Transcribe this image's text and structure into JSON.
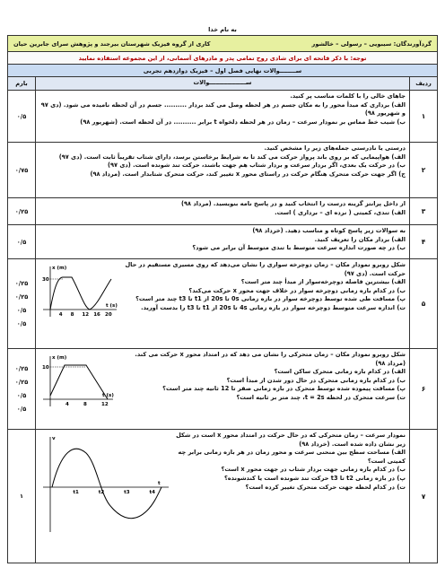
{
  "header": {
    "basmala": "به نام خدا",
    "authors": "گردآورندگان: سیبویی – رسولی – خالشور",
    "group": "کاری از گروه فیزیک شهرستان بیرجند و پژوهش سرای جابرین حیان",
    "note": "توجه: با ذکر فاتحه ای برای شادی روح تمامی پدر و مادرهای آسمانی، از این مجموعه استفاده نمایید",
    "exam_title": "ســــــــوالات نهایی فصل اول – فیزیک دوازدهم تجربی"
  },
  "table": {
    "columns": [
      "ردیف",
      "ســــــــــــــــــوالات",
      "بارم"
    ],
    "rows": [
      {
        "number": "۱",
        "lines": [
          "جاهای خالی را با کلمات مناسب پر کنید.",
          "الف) برداری که مبدأ محور را به مکان جسم در هر لحظه وصل می کند بردار .......... جسم در آن لحظه نامیده می شود. (دی ۹۷ و شهریور ۹۸)",
          "ب) شیب خط مماس بر نمودار سرعت – زمان در هر لحظه دلخواه t برابر .......... در آن لحظه است. (شهریور ۹۸)"
        ],
        "scores": [
          "۰/۵"
        ]
      },
      {
        "number": "۲",
        "lines": [
          "درستی یا نادرستی جمله‌های زیر را مشخص کنید.",
          "الف) هواپیمایی که بر روی باند پرواز حرکت می کند تا به شرایط برخاستن برسد، دارای شتاب تقریباً ثابت است. (دی ۹۷)",
          "ب) در حرکت یک بعدی، اگر بردار سرعت و بردار شتاب هم جهت باشند، حرکت تند شونده است. (دی ۹۷)",
          "ج) اگر جهت حرکت متحرک هنگام حرکت در راستای محور x تغییر کند، حرکت متحرک شتابدار است. (مرداد ۹۸)"
        ],
        "scores": [
          "۰/۷۵"
        ]
      },
      {
        "number": "۳",
        "lines": [
          "از داخل پرانتز گزینه درست را انتخاب کنید و در پاسخ نامه بنویسید. (مرداد ۹۸)",
          "الف) تندی، کمیتی ( نرده ای – برداری ) است."
        ],
        "scores": [
          "۰/۲۵"
        ]
      },
      {
        "number": "۴",
        "lines": [
          "به سوالات زیر پاسخ کوتاه و مناسب دهید. (خرداد ۹۸)",
          "الف) بردار مکان را تعریف کنید.",
          "ب) در چه صورت اندازه سرعت متوسط با تندی متوسط آن برابر می شود؟"
        ],
        "scores": [
          "۰/۵"
        ]
      },
      {
        "number": "۵",
        "lines": [
          "شکل روبرو نمودار مکان – زمان دوچرخه سواری را نشان می‌دهد که روی مسیری مستقیم در حال حرکت است. (دی ۹۷)",
          "الف) بیشترین فاصله دوچرخه‌سوار از مبدأ چند متر است؟",
          "ب) در کدام بازه زمانی دوچرخه سوار در خلاف جهت محور x حرکت می‌کند؟",
          "پ) مسافت طی شده توسط دوچرخه سوار در بازه زمانی 0s تا 20s از t1 تا t3 چند متر است؟",
          "ت) اندازه سرعت متوسط دوچرخه سوار در بازه زمانی 4s تا 20s از t1 تا t3 را بدست آورید."
        ],
        "scores": [
          "۰/۲۵",
          "۰/۲۵",
          "۰/۵",
          "۰/۵"
        ],
        "graph": {
          "ylabel": "x (m)",
          "xlabel": "t (s)",
          "yticks": [
            "30"
          ],
          "xticks": [
            "4",
            "8",
            "12",
            "16",
            "20"
          ]
        }
      },
      {
        "number": "۶",
        "lines": [
          "شکل روبرو نمودار مکان – زمان متحرکی را نشان می دهد که در امتداد محور x حرکت می کند. (مرداد ۹۸)",
          "الف) در کدام بازه زمانی متحرک ساکن است؟",
          "ب) در کدام بازه زمانی متحرک در حال دور شدن از مبدأ است؟",
          "پ) مسافت پیموده شده توسط متحرک در بازه زمانی صفر تا 12 ثانیه چند متر است؟",
          "ت) سرعت متحرک در لحظه t = 2s، چند متر بر ثانیه است؟"
        ],
        "scores": [
          "۰/۲۵",
          "۰/۲۵",
          "۰/۵",
          "۰/۵"
        ],
        "graph": {
          "ylabel": "x (m)",
          "xlabel": "t (s)",
          "yticks": [
            "10"
          ],
          "xticks": [
            "4",
            "8",
            "12"
          ]
        }
      },
      {
        "number": "۷",
        "lines": [
          "نمودار سرعت – زمان متحرکی که در حال حرکت در امتداد محور x است در شکل زیر نشان داده شده است. (خرداد ۹۸)",
          "الف) مساحت سطح بین منحنی سرعت و محور زمان در هر بازه زمانی برابر چه کمیتی است؟",
          "ب) در کدام بازه زمانی جهت بردار شتاب در جهت محور x است؟",
          "پ) در بازه زمانی t2 تا t3 حرکت تند شونده است یا کندشونده؟",
          "ت) در کدام لحظه جهت حرکت متحرک تغییر کرده است؟"
        ],
        "scores": [
          "۱"
        ],
        "graph": {
          "ylabel": "v",
          "xlabel": "t",
          "yticks": [],
          "xticks": [
            "t1",
            "t2",
            "t3",
            "t4"
          ]
        }
      }
    ]
  }
}
